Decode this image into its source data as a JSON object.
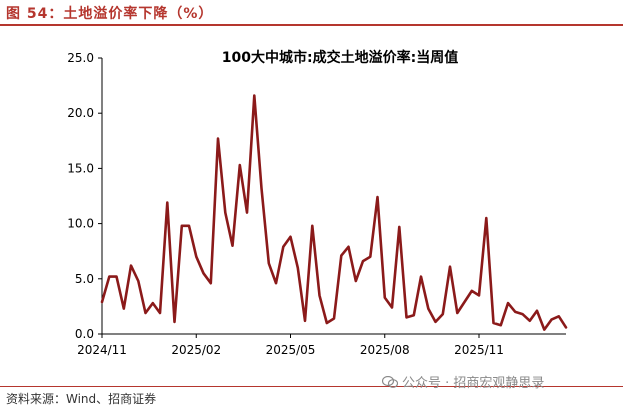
{
  "figure": {
    "title": "图 54：土地溢价率下降（%）",
    "source": "资料来源：Wind、招商证券",
    "watermark": "公众号 · 招商宏观静思录",
    "colors": {
      "accent": "#b5362e",
      "series": "#8b1a1a"
    }
  },
  "chart_data": {
    "type": "line",
    "title": "100大中城市:成交土地溢价率:当周值",
    "xlabel": "",
    "ylabel": "",
    "ylim": [
      0,
      25
    ],
    "yticks": [
      "0.0",
      "5.0",
      "10.0",
      "15.0",
      "20.0",
      "25.0"
    ],
    "xticks": [
      {
        "label": "2024/11",
        "index": 0
      },
      {
        "label": "2025/02",
        "index": 13
      },
      {
        "label": "2025/05",
        "index": 26
      },
      {
        "label": "2025/08",
        "index": 39
      },
      {
        "label": "2025/11",
        "index": 52
      }
    ],
    "grid": false,
    "legend": "none",
    "series": [
      {
        "values": [
          2.9,
          5.2,
          5.2,
          2.3,
          6.2,
          4.8,
          1.9,
          2.8,
          1.9,
          11.9,
          1.1,
          9.8,
          9.8,
          7.0,
          5.5,
          4.6,
          17.7,
          11.0,
          8.0,
          15.3,
          11.0,
          21.6,
          13.2,
          6.4,
          4.6,
          7.9,
          8.8,
          6.0,
          1.2,
          9.8,
          3.5,
          1.0,
          1.4,
          7.1,
          7.9,
          4.8,
          6.6,
          7.0,
          12.4,
          3.3,
          2.4,
          9.7,
          1.5,
          1.7,
          5.2,
          2.3,
          1.1,
          1.8,
          6.1,
          1.9,
          2.9,
          3.9,
          3.5,
          10.5,
          1.0,
          0.8,
          2.8,
          2.0,
          1.8,
          1.2,
          2.1,
          0.4,
          1.3,
          1.6,
          0.6
        ]
      }
    ]
  }
}
